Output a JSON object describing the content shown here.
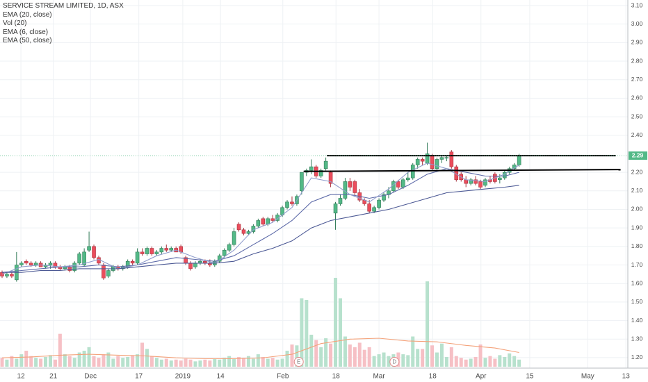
{
  "chart_data": {
    "type": "candlestick",
    "title": "SERVICE STREAM LIMITED, 1D, ASX",
    "open": [
      1.66,
      1.64,
      1.65,
      1.62,
      1.7,
      1.72,
      1.71,
      1.7,
      1.71,
      1.69,
      1.7,
      1.71,
      1.69,
      1.68,
      1.69,
      1.67,
      1.71,
      1.7,
      1.78,
      1.8,
      1.74,
      1.7,
      1.64,
      1.67,
      1.69,
      1.68,
      1.69,
      1.72,
      1.71,
      1.77,
      1.76,
      1.79,
      1.76,
      1.77,
      1.79,
      1.78,
      1.79,
      1.8,
      1.74,
      1.71,
      1.69,
      1.71,
      1.72,
      1.71,
      1.7,
      1.72,
      1.75,
      1.78,
      1.81,
      1.92,
      1.89,
      1.87,
      1.88,
      1.91,
      1.95,
      1.92,
      1.95,
      1.94,
      1.97,
      2.01,
      2.04,
      2.03,
      2.1,
      2.2,
      2.21,
      2.23,
      2.18,
      2.22,
      2.2,
      1.98,
      2.03,
      2.06,
      2.15,
      2.15,
      2.09,
      2.05,
      2.03,
      1.99,
      2.01,
      2.05,
      2.08,
      2.1,
      2.15,
      2.12,
      2.16,
      2.17,
      2.24,
      2.27,
      2.25,
      2.29,
      2.22,
      2.27,
      2.28,
      2.31,
      2.23,
      2.19,
      2.16,
      2.14,
      2.16,
      2.15,
      2.13,
      2.16,
      2.19,
      2.16,
      2.17,
      2.2,
      2.22,
      2.24
    ],
    "high": [
      1.67,
      1.66,
      1.66,
      1.77,
      1.72,
      1.73,
      1.72,
      1.72,
      1.72,
      1.71,
      1.72,
      1.72,
      1.7,
      1.7,
      1.7,
      1.72,
      1.77,
      1.79,
      1.88,
      1.81,
      1.75,
      1.71,
      1.68,
      1.7,
      1.7,
      1.7,
      1.73,
      1.73,
      1.79,
      1.79,
      1.8,
      1.8,
      1.78,
      1.8,
      1.81,
      1.8,
      1.8,
      1.81,
      1.75,
      1.72,
      1.72,
      1.73,
      1.73,
      1.73,
      1.73,
      1.76,
      1.79,
      1.82,
      1.9,
      1.93,
      1.9,
      1.89,
      1.92,
      1.95,
      1.96,
      1.96,
      1.97,
      1.98,
      2.02,
      2.05,
      2.07,
      2.08,
      2.2,
      2.22,
      2.27,
      2.24,
      2.22,
      2.28,
      2.21,
      2.04,
      2.08,
      2.17,
      2.17,
      2.16,
      2.11,
      2.06,
      2.05,
      2.02,
      2.06,
      2.09,
      2.12,
      2.16,
      2.16,
      2.17,
      2.2,
      2.25,
      2.28,
      2.28,
      2.36,
      2.3,
      2.28,
      2.29,
      2.29,
      2.32,
      2.24,
      2.2,
      2.18,
      2.17,
      2.18,
      2.16,
      2.17,
      2.18,
      2.2,
      2.19,
      2.21,
      2.23,
      2.25,
      2.3
    ],
    "low": [
      1.63,
      1.63,
      1.63,
      1.61,
      1.69,
      1.7,
      1.69,
      1.69,
      1.69,
      1.68,
      1.68,
      1.68,
      1.67,
      1.67,
      1.66,
      1.66,
      1.7,
      1.69,
      1.77,
      1.73,
      1.7,
      1.62,
      1.63,
      1.66,
      1.67,
      1.67,
      1.68,
      1.7,
      1.7,
      1.75,
      1.75,
      1.75,
      1.75,
      1.76,
      1.77,
      1.77,
      1.77,
      1.76,
      1.7,
      1.67,
      1.68,
      1.7,
      1.7,
      1.69,
      1.69,
      1.71,
      1.74,
      1.77,
      1.8,
      1.88,
      1.86,
      1.86,
      1.87,
      1.9,
      1.91,
      1.91,
      1.93,
      1.93,
      1.96,
      2.0,
      2.02,
      2.02,
      2.08,
      2.18,
      2.19,
      2.17,
      2.17,
      2.21,
      2.12,
      1.89,
      2.02,
      2.05,
      2.1,
      2.07,
      2.04,
      2.02,
      1.98,
      1.98,
      2.0,
      2.04,
      2.06,
      2.09,
      2.11,
      2.11,
      2.15,
      2.16,
      2.22,
      2.24,
      2.24,
      2.21,
      2.21,
      2.25,
      2.26,
      2.22,
      2.15,
      2.15,
      2.12,
      2.13,
      2.13,
      2.11,
      2.12,
      2.14,
      2.14,
      2.14,
      2.16,
      2.19,
      2.21,
      2.23
    ],
    "close": [
      1.64,
      1.65,
      1.64,
      1.7,
      1.71,
      1.71,
      1.7,
      1.71,
      1.69,
      1.7,
      1.71,
      1.69,
      1.68,
      1.69,
      1.67,
      1.71,
      1.76,
      1.77,
      1.8,
      1.74,
      1.71,
      1.63,
      1.67,
      1.69,
      1.68,
      1.69,
      1.72,
      1.71,
      1.77,
      1.76,
      1.79,
      1.76,
      1.77,
      1.79,
      1.78,
      1.79,
      1.77,
      1.77,
      1.71,
      1.68,
      1.71,
      1.72,
      1.71,
      1.7,
      1.72,
      1.75,
      1.78,
      1.81,
      1.88,
      1.89,
      1.87,
      1.88,
      1.91,
      1.94,
      1.92,
      1.95,
      1.94,
      1.97,
      2.01,
      2.04,
      2.03,
      2.07,
      2.2,
      2.21,
      2.23,
      2.18,
      2.21,
      2.26,
      2.14,
      2.03,
      2.06,
      2.15,
      2.12,
      2.09,
      2.05,
      2.03,
      1.99,
      2.01,
      2.05,
      2.08,
      2.1,
      2.15,
      2.12,
      2.16,
      2.17,
      2.24,
      2.27,
      2.26,
      2.3,
      2.22,
      2.27,
      2.28,
      2.28,
      2.23,
      2.16,
      2.16,
      2.14,
      2.16,
      2.14,
      2.12,
      2.16,
      2.15,
      2.15,
      2.17,
      2.2,
      2.22,
      2.24,
      2.29
    ],
    "volume": [
      10,
      8,
      12,
      9,
      14,
      18,
      12,
      10,
      9,
      11,
      13,
      8,
      37,
      14,
      12,
      10,
      16,
      18,
      22,
      12,
      10,
      14,
      16,
      9,
      12,
      10,
      11,
      13,
      14,
      27,
      20,
      12,
      10,
      8,
      9,
      7,
      8,
      7,
      9,
      8,
      6,
      7,
      8,
      7,
      9,
      8,
      10,
      12,
      9,
      11,
      10,
      12,
      9,
      14,
      11,
      9,
      10,
      8,
      9,
      18,
      25,
      24,
      77,
      75,
      36,
      30,
      22,
      32,
      26,
      100,
      77,
      34,
      25,
      22,
      27,
      19,
      22,
      12,
      14,
      16,
      12,
      14,
      16,
      14,
      13,
      34,
      20,
      20,
      96,
      24,
      16,
      26,
      11,
      22,
      12,
      10,
      8,
      9,
      11,
      25,
      10,
      12,
      9,
      13,
      11,
      15,
      12,
      8
    ],
    "up_color": "#53b987",
    "down_color": "#eb4d5c",
    "volume_up_color": "#b7e1cd",
    "volume_down_color": "#f6c0c5",
    "xlim": [
      -0.43,
      129.5
    ],
    "xticks": [
      {
        "value": 3.9,
        "label": "12"
      },
      {
        "value": 10.6,
        "label": "21"
      },
      {
        "value": 18.3,
        "label": "Dec"
      },
      {
        "value": 28.3,
        "label": "17"
      },
      {
        "value": 37.4,
        "label": "2019"
      },
      {
        "value": 45.2,
        "label": "14"
      },
      {
        "value": 58.1,
        "label": "Feb"
      },
      {
        "value": 69.1,
        "label": "18"
      },
      {
        "value": 78,
        "label": "Mar"
      },
      {
        "value": 89.1,
        "label": "18"
      },
      {
        "value": 99.1,
        "label": "Apr"
      },
      {
        "value": 109.2,
        "label": "15"
      },
      {
        "value": 121.2,
        "label": "May"
      },
      {
        "value": 129.1,
        "label": "13"
      }
    ],
    "ylim": [
      1.151,
      3.13
    ],
    "yticks": [
      {
        "value": 1.2,
        "label": "1.20"
      },
      {
        "value": 1.3,
        "label": "1.30"
      },
      {
        "value": 1.4,
        "label": "1.40"
      },
      {
        "value": 1.5,
        "label": "1.50"
      },
      {
        "value": 1.6,
        "label": "1.60"
      },
      {
        "value": 1.7,
        "label": "1.70"
      },
      {
        "value": 1.8,
        "label": "1.80"
      },
      {
        "value": 1.9,
        "label": "1.90"
      },
      {
        "value": 2,
        "label": "2.00"
      },
      {
        "value": 2.1,
        "label": "2.10"
      },
      {
        "value": 2.2,
        "label": "2.20"
      },
      {
        "value": 2.4,
        "label": "2.40"
      },
      {
        "value": 2.5,
        "label": "2.50"
      },
      {
        "value": 2.6,
        "label": "2.60"
      },
      {
        "value": 2.7,
        "label": "2.70"
      },
      {
        "value": 2.8,
        "label": "2.80"
      },
      {
        "value": 2.9,
        "label": "2.90"
      },
      {
        "value": 3,
        "label": "3.00"
      },
      {
        "value": 3.1,
        "label": "3.10"
      }
    ],
    "volume_lim": [
      0,
      100
    ],
    "grid": true,
    "series": [
      {
        "name": "EMA (20, close)",
        "color": "#5d6aa8",
        "x": [
          0,
          4,
          8,
          12,
          16,
          20,
          24,
          28,
          32,
          36,
          40,
          44,
          48,
          52,
          56,
          60,
          64,
          68,
          72,
          76,
          80,
          84,
          88,
          92,
          96,
          100,
          104,
          107
        ],
        "values": [
          1.66,
          1.67,
          1.68,
          1.69,
          1.69,
          1.7,
          1.69,
          1.7,
          1.72,
          1.74,
          1.73,
          1.72,
          1.75,
          1.81,
          1.87,
          1.94,
          2.04,
          2.08,
          2.08,
          2.06,
          2.08,
          2.13,
          2.19,
          2.22,
          2.2,
          2.18,
          2.18,
          2.2
        ]
      },
      {
        "name": "Vol (20)",
        "color": "#f4a27a",
        "axis": "volume",
        "x": [
          0,
          6,
          12,
          18,
          24,
          30,
          36,
          42,
          48,
          54,
          60,
          66,
          72,
          78,
          84,
          90,
          96,
          102,
          107
        ],
        "values": [
          10,
          11,
          13,
          14,
          13,
          12,
          10,
          9,
          9,
          10,
          14,
          26,
          31,
          32,
          29,
          28,
          24,
          21,
          16
        ]
      },
      {
        "name": "EMA (6, close)",
        "color": "#8f9ccc",
        "x": [
          0,
          4,
          8,
          12,
          16,
          20,
          24,
          28,
          32,
          36,
          40,
          44,
          48,
          52,
          56,
          60,
          64,
          68,
          72,
          76,
          80,
          84,
          88,
          92,
          96,
          100,
          104,
          107
        ],
        "values": [
          1.65,
          1.69,
          1.7,
          1.69,
          1.7,
          1.73,
          1.68,
          1.7,
          1.75,
          1.78,
          1.74,
          1.71,
          1.78,
          1.89,
          1.93,
          2.01,
          2.17,
          2.15,
          2.08,
          2.04,
          2.11,
          2.2,
          2.25,
          2.22,
          2.16,
          2.15,
          2.19,
          2.24
        ]
      },
      {
        "name": "EMA (50, close)",
        "color": "#4b5894",
        "x": [
          0,
          4,
          8,
          12,
          16,
          20,
          24,
          28,
          32,
          36,
          40,
          44,
          48,
          52,
          56,
          60,
          64,
          68,
          72,
          76,
          80,
          84,
          88,
          92,
          96,
          100,
          104,
          107
        ],
        "values": [
          1.66,
          1.66,
          1.67,
          1.67,
          1.68,
          1.68,
          1.68,
          1.69,
          1.7,
          1.71,
          1.71,
          1.71,
          1.72,
          1.76,
          1.79,
          1.83,
          1.9,
          1.94,
          1.96,
          1.98,
          2.0,
          2.03,
          2.06,
          2.09,
          2.1,
          2.11,
          2.12,
          2.13
        ]
      }
    ],
    "trend_lines": [
      {
        "x": [
          67.2,
          127
        ],
        "y": [
          2.29,
          2.29
        ]
      },
      {
        "x": [
          62.4,
          128
        ],
        "y": [
          2.205,
          2.215
        ]
      }
    ],
    "events": [
      {
        "x": 61.4,
        "label": "E"
      },
      {
        "x": 81.2,
        "label": "D"
      }
    ],
    "last_price_label": "2.29"
  }
}
